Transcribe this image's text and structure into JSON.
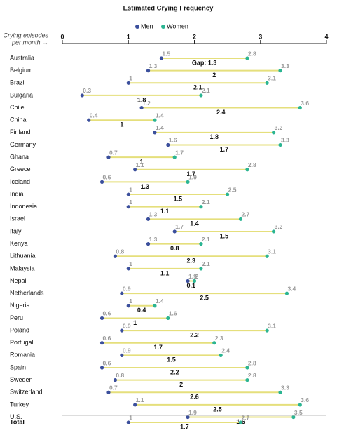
{
  "chart_data": {
    "type": "dumbbell",
    "title": "Estimated Crying Frequency",
    "x_label": [
      "Crying episodes",
      "per month →"
    ],
    "xlim": [
      0,
      4
    ],
    "xticks": [
      0,
      1,
      2,
      3,
      4
    ],
    "categories": [
      "Australia",
      "Belgium",
      "Brazil",
      "Bulgaria",
      "Chile",
      "China",
      "Finland",
      "Germany",
      "Ghana",
      "Greece",
      "Iceland",
      "India",
      "Indonesia",
      "Israel",
      "Italy",
      "Kenya",
      "Lithuania",
      "Malaysia",
      "Nepal",
      "Netherlands",
      "Nigeria",
      "Peru",
      "Poland",
      "Portugal",
      "Romania",
      "Spain",
      "Sweden",
      "Switzerland",
      "Turkey",
      "U.S.",
      "Total"
    ],
    "series": [
      {
        "name": "Men",
        "color": "#3b4f9c",
        "values": [
          1.5,
          1.3,
          1,
          0.3,
          1.2,
          0.4,
          1.4,
          1.6,
          0.7,
          1.1,
          0.6,
          1,
          1,
          1.3,
          1.7,
          1.3,
          0.8,
          1,
          1.9,
          0.9,
          1,
          0.6,
          0.9,
          0.6,
          0.9,
          0.6,
          0.8,
          0.7,
          1.1,
          1.9,
          1
        ]
      },
      {
        "name": "Women",
        "color": "#2bb592",
        "values": [
          2.8,
          3.3,
          3.1,
          2.1,
          3.6,
          1.4,
          3.2,
          3.3,
          1.7,
          2.8,
          1.9,
          2.5,
          2.1,
          2.7,
          3.2,
          2.1,
          3.1,
          2.1,
          2,
          3.4,
          1.4,
          1.6,
          3.1,
          2.3,
          2.4,
          2.8,
          2.8,
          3.3,
          3.6,
          3.5,
          2.7
        ]
      }
    ],
    "gap": {
      "color": "#e5df7c",
      "values": [
        1.3,
        2,
        2.1,
        1.8,
        2.4,
        1,
        1.8,
        1.7,
        1,
        1.7,
        1.3,
        1.5,
        1.1,
        1.4,
        1.5,
        0.8,
        2.3,
        1.1,
        0.1,
        2.5,
        0.4,
        1,
        2.2,
        1.7,
        1.5,
        2.2,
        2,
        2.6,
        2.5,
        1.6,
        1.7
      ],
      "value_labels": [
        "Gap: 1.3",
        "2",
        "2.1",
        "1.8",
        "2.4",
        "1",
        "1.8",
        "1.7",
        "1",
        "1.7",
        "1.3",
        "1.5",
        "1.1",
        "1.4",
        "1.5",
        "0.8",
        "2.3",
        "1.1",
        "0.1",
        "2.5",
        "0.4",
        "1",
        "2.2",
        "1.7",
        "1.5",
        "2.2",
        "2",
        "2.6",
        "2.5",
        "1.6",
        "1.7"
      ]
    }
  }
}
